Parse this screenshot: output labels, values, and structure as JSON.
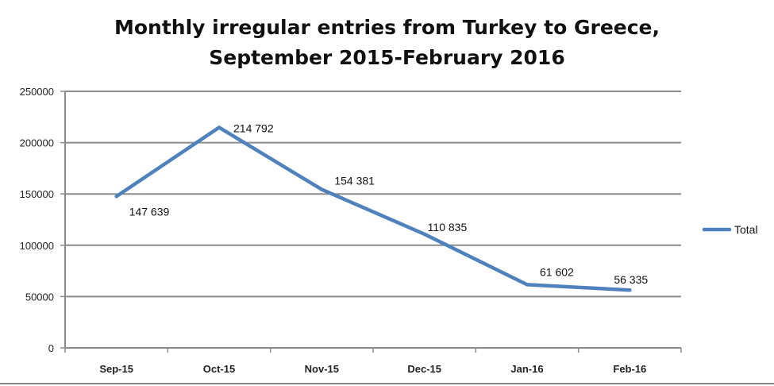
{
  "chart_data": {
    "type": "line",
    "title_line1": "Monthly irregular entries from Turkey to Greece,",
    "title_line2": "September 2015-February 2016",
    "categories": [
      "Sep-15",
      "Oct-15",
      "Nov-15",
      "Dec-15",
      "Jan-16",
      "Feb-16"
    ],
    "series": [
      {
        "name": "Total",
        "values": [
          147639,
          214792,
          154381,
          110835,
          61602,
          56335
        ],
        "labels": [
          "147 639",
          "214 792",
          "154 381",
          "110 835",
          "61 602",
          "56 335"
        ],
        "color": "#4f81bd"
      }
    ],
    "ylim": [
      0,
      250000
    ],
    "yticks": [
      0,
      50000,
      100000,
      150000,
      200000,
      250000
    ],
    "ytick_labels": [
      "0",
      "50000",
      "100000",
      "150000",
      "200000",
      "250000"
    ],
    "grid": true,
    "legend_position": "right"
  }
}
